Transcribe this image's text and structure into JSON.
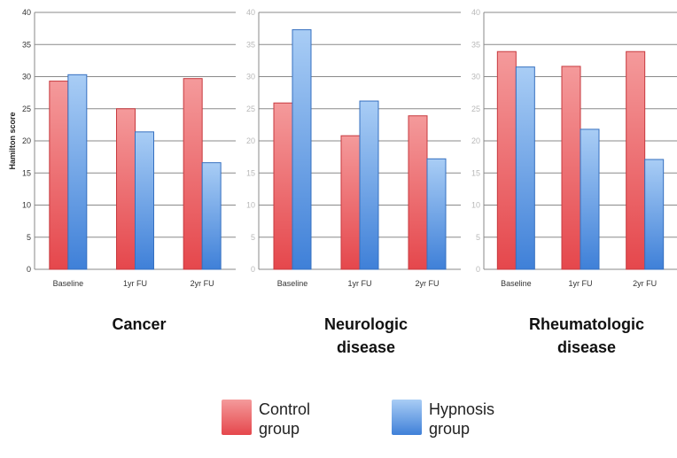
{
  "colors": {
    "control": "#e5474c",
    "control_light": "#f49a9b",
    "hypnosis": "#3f80d8",
    "hypnosis_light": "#a9cdf5"
  },
  "legend": {
    "control_label": "Control group",
    "hypnosis_label": "Hypnosis group"
  },
  "chart_data": [
    {
      "type": "bar",
      "title": "Cancer",
      "ylabel": "Hamilton score",
      "ylim": [
        0,
        40
      ],
      "yticks": [
        0,
        5,
        10,
        15,
        20,
        25,
        30,
        35,
        40
      ],
      "grid": true,
      "categories": [
        "Baseline",
        "1yr FU",
        "2yr FU"
      ],
      "series": [
        {
          "name": "Control group",
          "values": [
            29.3,
            25.0,
            29.7
          ]
        },
        {
          "name": "Hypnosis group",
          "values": [
            30.3,
            21.4,
            16.6
          ]
        }
      ]
    },
    {
      "type": "bar",
      "title": "Neurologic disease",
      "ylabel": "",
      "ylim": [
        0,
        40
      ],
      "yticks": [
        0,
        5,
        10,
        15,
        20,
        25,
        30,
        35,
        40
      ],
      "grid": true,
      "categories": [
        "Baseline",
        "1yr FU",
        "2yr FU"
      ],
      "series": [
        {
          "name": "Control group",
          "values": [
            25.9,
            20.8,
            23.9
          ]
        },
        {
          "name": "Hypnosis group",
          "values": [
            37.3,
            26.2,
            17.2
          ]
        }
      ]
    },
    {
      "type": "bar",
      "title": "Rheumatologic disease",
      "ylabel": "",
      "ylim": [
        0,
        40
      ],
      "yticks": [
        0,
        5,
        10,
        15,
        20,
        25,
        30,
        35,
        40
      ],
      "grid": true,
      "categories": [
        "Baseline",
        "1yr FU",
        "2yr FU"
      ],
      "series": [
        {
          "name": "Control group",
          "values": [
            33.9,
            31.6,
            33.9
          ]
        },
        {
          "name": "Hypnosis group",
          "values": [
            31.5,
            21.8,
            17.1
          ]
        }
      ]
    }
  ]
}
